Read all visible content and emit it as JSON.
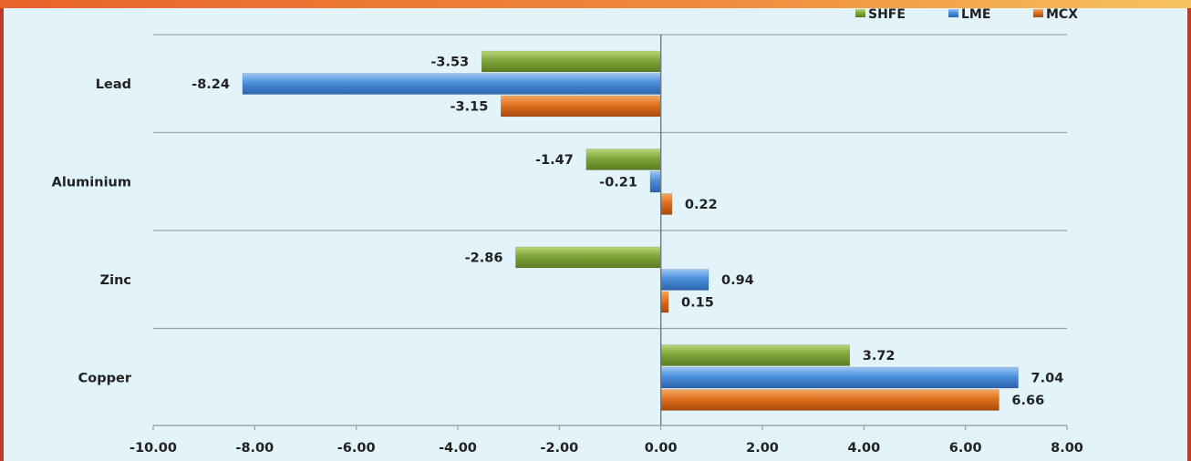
{
  "chart_data": {
    "type": "bar",
    "orientation": "horizontal",
    "categories": [
      "Lead",
      "Aluminium",
      "Zinc",
      "Copper"
    ],
    "series": [
      {
        "name": "SHFE",
        "color": "#7ea63a",
        "values": [
          -3.53,
          -1.47,
          -2.86,
          3.72
        ]
      },
      {
        "name": "LME",
        "color": "#4a8fdc",
        "values": [
          -8.24,
          -0.21,
          0.94,
          7.04
        ]
      },
      {
        "name": "MCX",
        "color": "#e0701e",
        "values": [
          -3.15,
          0.22,
          0.15,
          6.66
        ]
      }
    ],
    "value_labels": {
      "SHFE": [
        "-3.53",
        "-1.47",
        "-2.86",
        "3.72"
      ],
      "LME": [
        "-8.24",
        "-0.21",
        "0.94",
        "7.04"
      ],
      "MCX": [
        "-3.15",
        "0.22",
        "0.15",
        "6.66"
      ]
    },
    "xlim": [
      -10,
      8
    ],
    "x_ticks": [
      -10,
      -8,
      -6,
      -4,
      -2,
      0,
      2,
      4,
      6,
      8
    ],
    "x_tick_labels": [
      "-10.00",
      "-8.00",
      "-6.00",
      "-4.00",
      "-2.00",
      "0.00",
      "2.00",
      "4.00",
      "6.00",
      "8.00"
    ],
    "title": "",
    "xlabel": "",
    "ylabel": "",
    "grid": "horizontal separators between categories",
    "legend": {
      "placement": "top-right",
      "entries": [
        "SHFE",
        "LME",
        "MCX"
      ]
    }
  }
}
